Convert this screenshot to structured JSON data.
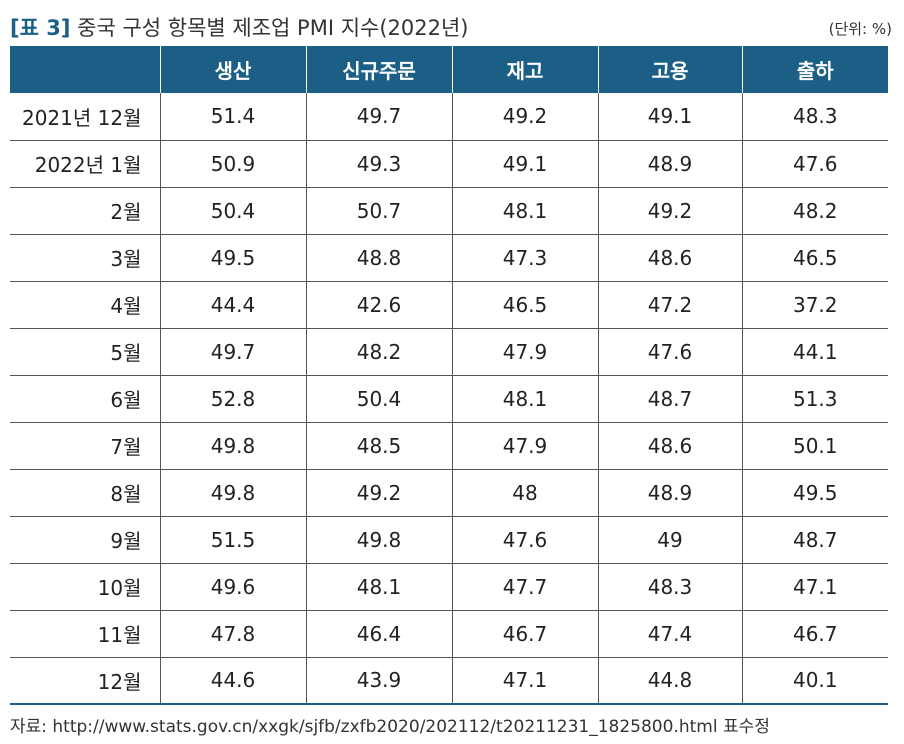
{
  "header": {
    "tag": "[표 3]",
    "title": "중국 구성 항목별 제조업 PMI 지수(2022년)",
    "unit": "(단위: %)"
  },
  "table": {
    "columns": [
      "",
      "생산",
      "신규주문",
      "재고",
      "고용",
      "출하"
    ],
    "rows": [
      [
        "2021년 12월",
        "51.4",
        "49.7",
        "49.2",
        "49.1",
        "48.3"
      ],
      [
        "2022년 1월",
        "50.9",
        "49.3",
        "49.1",
        "48.9",
        "47.6"
      ],
      [
        "2월",
        "50.4",
        "50.7",
        "48.1",
        "49.2",
        "48.2"
      ],
      [
        "3월",
        "49.5",
        "48.8",
        "47.3",
        "48.6",
        "46.5"
      ],
      [
        "4월",
        "44.4",
        "42.6",
        "46.5",
        "47.2",
        "37.2"
      ],
      [
        "5월",
        "49.7",
        "48.2",
        "47.9",
        "47.6",
        "44.1"
      ],
      [
        "6월",
        "52.8",
        "50.4",
        "48.1",
        "48.7",
        "51.3"
      ],
      [
        "7월",
        "49.8",
        "48.5",
        "47.9",
        "48.6",
        "50.1"
      ],
      [
        "8월",
        "49.8",
        "49.2",
        "48",
        "48.9",
        "49.5"
      ],
      [
        "9월",
        "51.5",
        "49.8",
        "47.6",
        "49",
        "48.7"
      ],
      [
        "10월",
        "49.6",
        "48.1",
        "47.7",
        "48.3",
        "47.1"
      ],
      [
        "11월",
        "47.8",
        "46.4",
        "46.7",
        "47.4",
        "46.7"
      ],
      [
        "12월",
        "44.6",
        "43.9",
        "47.1",
        "44.8",
        "40.1"
      ]
    ]
  },
  "footer": {
    "source": "자료: http://www.stats.gov.cn/xxgk/sjfb/zxfb2020/202112/t20211231_1825800.html 표수정"
  },
  "colors": {
    "header_bg": "#1b5f86",
    "header_text": "#ffffff"
  }
}
